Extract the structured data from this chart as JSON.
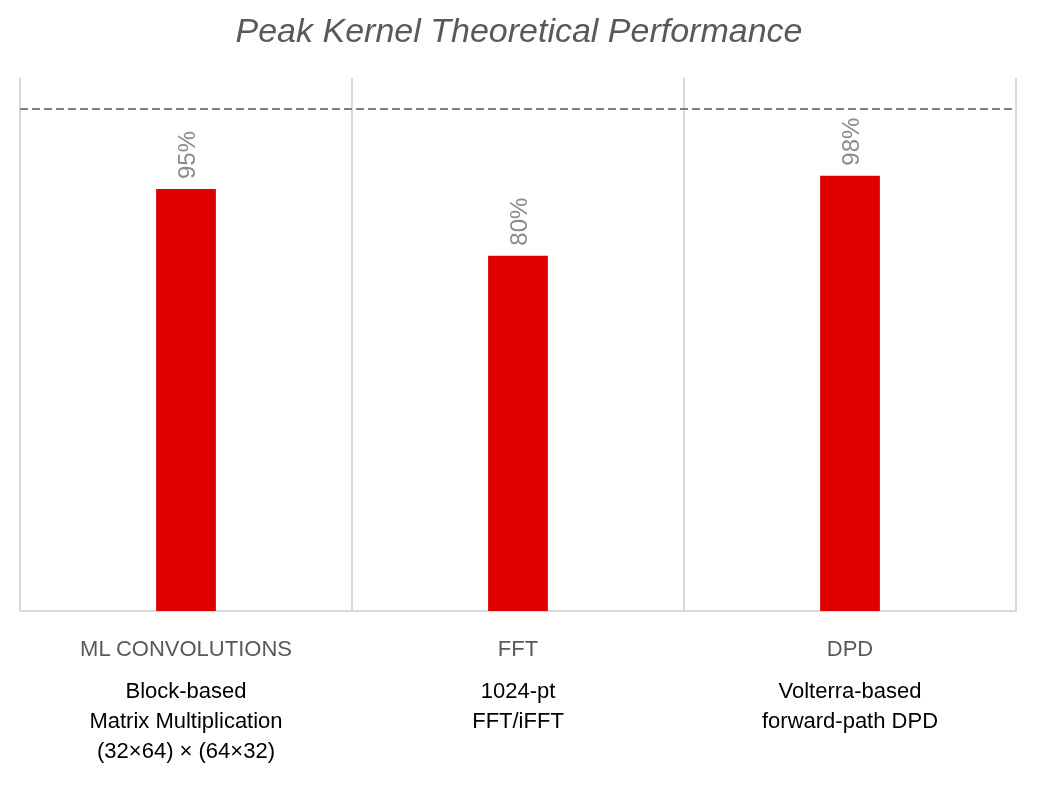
{
  "chart_data": {
    "type": "bar",
    "title": "Peak Kernel Theoretical Performance",
    "categories": [
      "ML CONVOLUTIONS\nBlock-based\nMatrix Multiplication\n(32×64) × (64×32)",
      "FFT\n1024-pt\nFFT/iFFT",
      "DPD\nVolterra-based\nforward-path DPD"
    ],
    "values": [
      95,
      80,
      98
    ],
    "value_labels": [
      "95%",
      "80%",
      "98%"
    ],
    "color": "#e00000",
    "ylim": [
      0,
      120
    ],
    "grid": "x",
    "ref_lines": [
      {
        "axis": "y",
        "value": 113,
        "color": "#808080",
        "line_style": "dashed"
      }
    ]
  }
}
